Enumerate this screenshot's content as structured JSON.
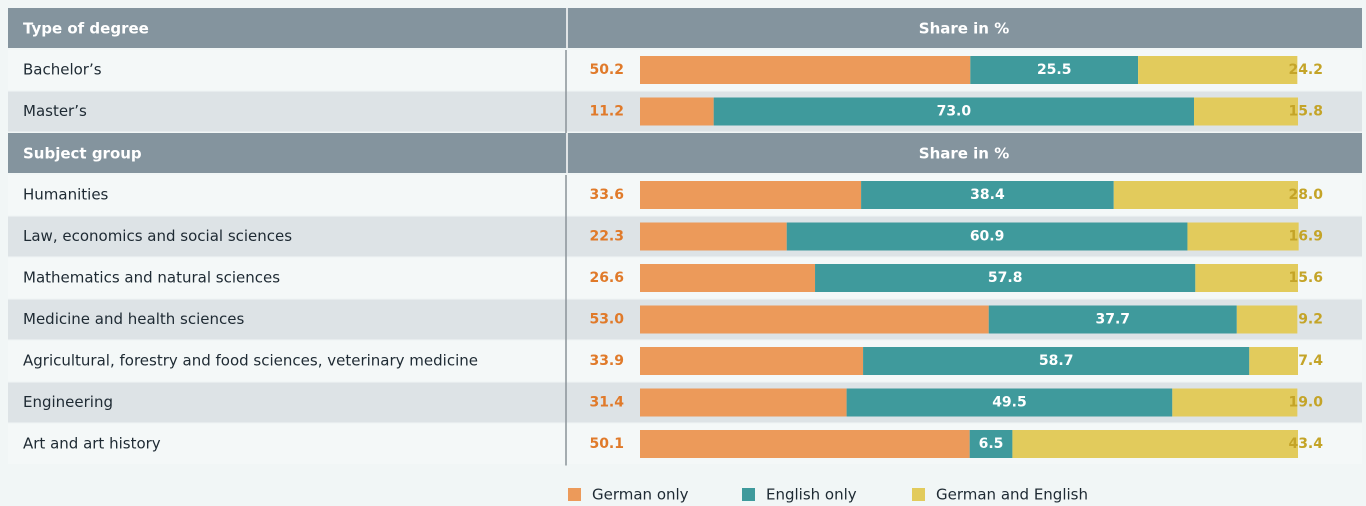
{
  "chart_data": {
    "type": "stacked-bar",
    "orientation": "horizontal",
    "xlim": [
      0,
      100
    ],
    "groups": [
      {
        "title": "Type of degree",
        "value_header": "Share in %",
        "categories": [
          "Bachelor’s",
          "Master’s"
        ]
      },
      {
        "title": "Subject group",
        "value_header": "Share in %",
        "categories": [
          "Humanities",
          "Law, economics and social sciences",
          "Mathematics and natural sciences",
          "Medicine and health sciences",
          "Agricultural, forestry and food sciences, veterinary medicine",
          "Engineering",
          "Art and art history"
        ]
      }
    ],
    "series": [
      {
        "name": "German only",
        "color": "#ec9a5a",
        "label_color": "#e07a2a",
        "values": [
          [
            50.2,
            11.2
          ],
          [
            33.6,
            22.3,
            26.6,
            53.0,
            33.9,
            31.4,
            50.1
          ]
        ],
        "value_labels": [
          [
            "50.2",
            "11.2"
          ],
          [
            "33.6",
            "22.3",
            "26.6",
            "53.0",
            "33.9",
            "31.4",
            "50.1"
          ]
        ]
      },
      {
        "name": "English only",
        "color": "#3f9a9c",
        "label_color": "#ffffff",
        "values": [
          [
            25.5,
            73.0
          ],
          [
            38.4,
            60.9,
            57.8,
            37.7,
            58.7,
            49.5,
            6.5
          ]
        ],
        "value_labels": [
          [
            "25.5",
            "73.0"
          ],
          [
            "38.4",
            "60.9",
            "57.8",
            "37.7",
            "58.7",
            "49.5",
            "6.5"
          ]
        ]
      },
      {
        "name": "German and English",
        "color": "#e2cb5c",
        "label_color": "#c4a428",
        "values": [
          [
            24.2,
            15.8
          ],
          [
            28.0,
            16.9,
            15.6,
            9.2,
            7.4,
            19.0,
            43.4
          ]
        ],
        "value_labels": [
          [
            "24.2",
            "15.8"
          ],
          [
            "28.0",
            "16.9",
            "15.6",
            "9.2",
            "7.4",
            "19.0",
            "43.4"
          ]
        ]
      }
    ]
  }
}
